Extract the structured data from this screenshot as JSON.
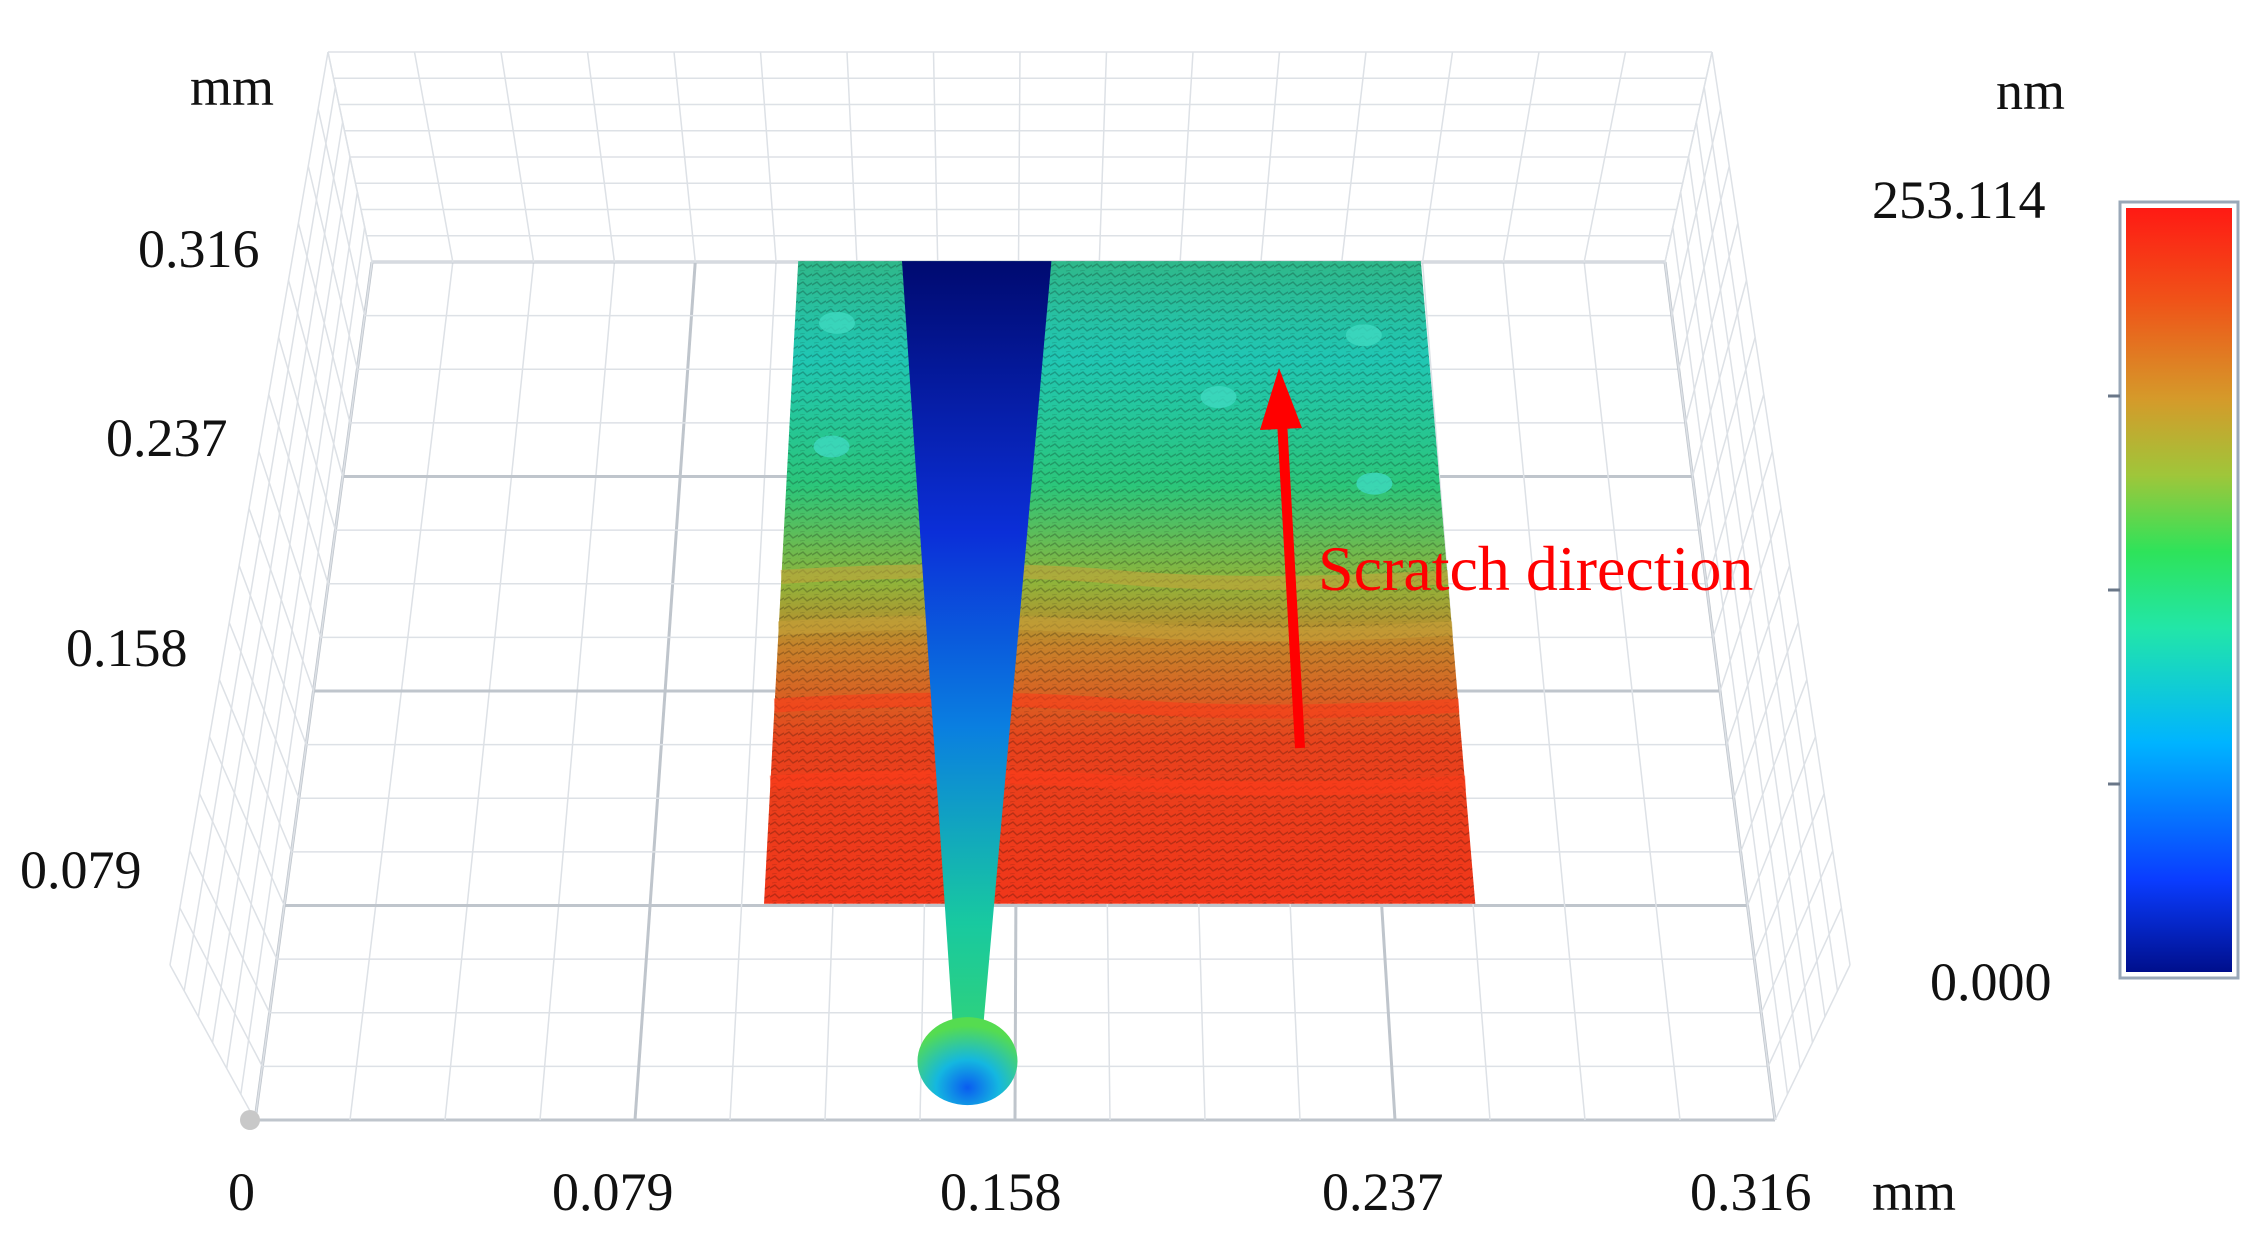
{
  "chart_data": {
    "type": "heatmap",
    "subtype": "3d-surface-profile",
    "x_axis": {
      "unit": "mm",
      "ticks": [
        "0",
        "0.079",
        "0.158",
        "0.237",
        "0.316"
      ],
      "range": [
        0,
        0.316
      ]
    },
    "y_axis": {
      "unit": "mm",
      "ticks": [
        "0.079",
        "0.158",
        "0.237",
        "0.316"
      ],
      "range": [
        0,
        0.316
      ]
    },
    "colorbar": {
      "unit": "nm",
      "max_label": "253.114",
      "min_label": "0.000",
      "range": [
        0,
        253.114
      ],
      "stops": [
        "#000f8c",
        "#0a3cff",
        "#00b4ff",
        "#22e6a8",
        "#2ee35a",
        "#9fc63a",
        "#d59a2a",
        "#f05218",
        "#ff1a14"
      ]
    },
    "surface": {
      "x_range": [
        0.105,
        0.255
      ],
      "y_range": [
        0.03,
        0.29
      ],
      "groove_center_x": 0.148,
      "groove_depth_nm": 0,
      "top_height_nm": 130,
      "bottom_height_nm": 245
    },
    "annotation": {
      "text": "Scratch direction",
      "color": "#ff0000"
    },
    "grid": true
  }
}
